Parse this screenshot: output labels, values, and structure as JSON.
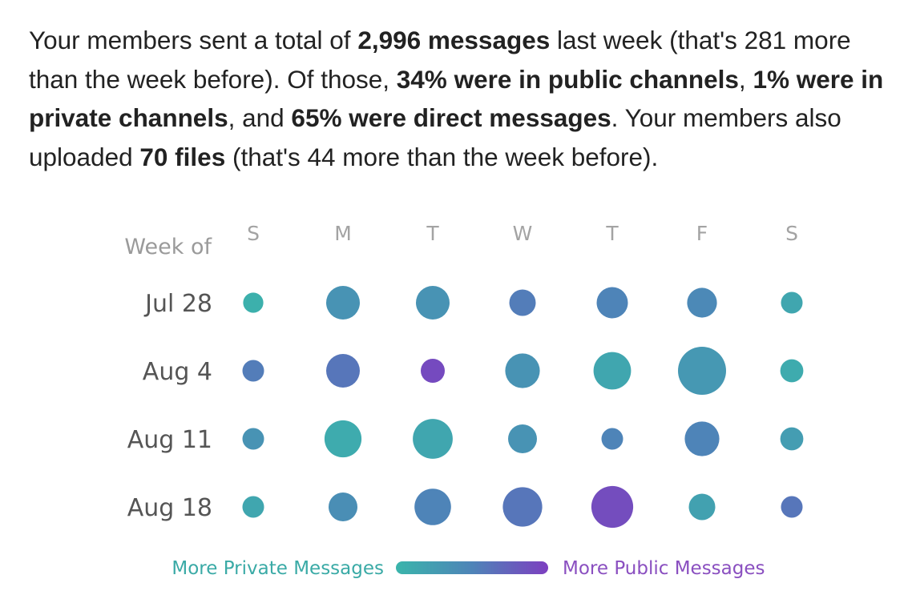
{
  "summary": {
    "t1": "Your members sent a total of ",
    "b1": "2,996 messages",
    "t2": " last week (that's 281 more than the week before). Of those, ",
    "b2": "34% were in public channels",
    "t3": ", ",
    "b3": "1% were in private channels",
    "t4": ", and ",
    "b4": "65% were direct messages",
    "t5": ". Your members also uploaded ",
    "b5": "70 files",
    "t6": " (that's 44 more than the week before)."
  },
  "chart_data": {
    "type": "scatter",
    "row_header": "Week of",
    "days": [
      "S",
      "M",
      "T",
      "W",
      "T",
      "F",
      "S"
    ],
    "weeks": [
      "Jul 28",
      "Aug 4",
      "Aug 11",
      "Aug 18"
    ],
    "dot_size": [
      [
        0.42,
        0.7,
        0.7,
        0.55,
        0.65,
        0.62,
        0.45
      ],
      [
        0.45,
        0.7,
        0.5,
        0.72,
        0.78,
        1.0,
        0.48
      ],
      [
        0.45,
        0.77,
        0.83,
        0.6,
        0.45,
        0.72,
        0.48
      ],
      [
        0.45,
        0.6,
        0.76,
        0.82,
        0.87,
        0.55,
        0.45
      ]
    ],
    "privacy_color": [
      [
        0.05,
        0.35,
        0.35,
        0.55,
        0.5,
        0.45,
        0.15
      ],
      [
        0.55,
        0.6,
        0.92,
        0.35,
        0.15,
        0.3,
        0.1
      ],
      [
        0.35,
        0.1,
        0.15,
        0.35,
        0.5,
        0.5,
        0.25
      ],
      [
        0.15,
        0.4,
        0.5,
        0.6,
        0.9,
        0.2,
        0.6
      ]
    ],
    "legend": {
      "left": "More Private Messages",
      "right": "More Public Messages"
    },
    "colors": {
      "private": "#3ab5ab",
      "mid": "#4e84b8",
      "public": "#7d3fc0"
    }
  }
}
